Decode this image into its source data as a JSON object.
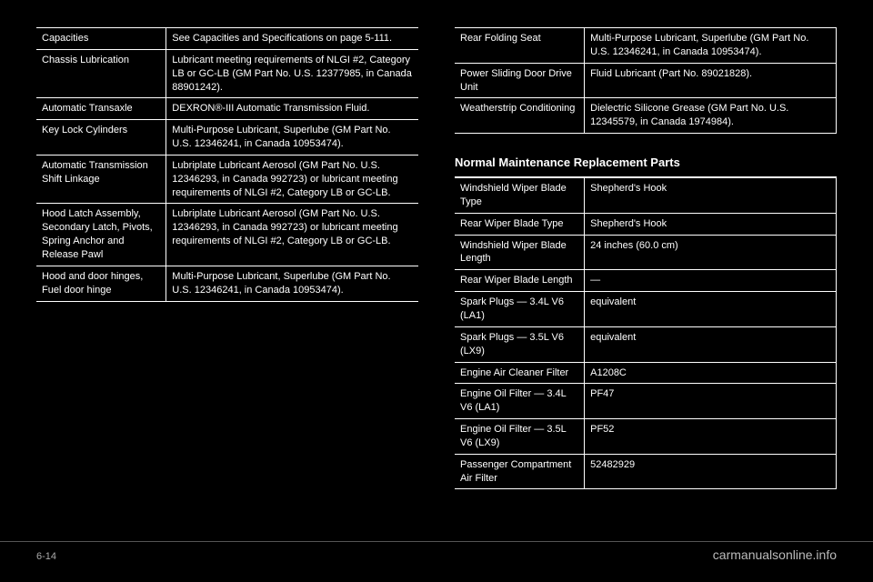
{
  "left_table": {
    "rows": [
      {
        "label": "Capacities",
        "value": "See Capacities and Specifications on page 5-111."
      },
      {
        "label": "Chassis Lubrication",
        "value": "Lubricant meeting requirements of NLGI #2, Category LB or GC-LB (GM Part No. U.S. 12377985, in Canada 88901242)."
      },
      {
        "label": "Automatic Transaxle",
        "value": "DEXRON®-III Automatic Transmission Fluid."
      },
      {
        "label": "Key Lock Cylinders",
        "value": "Multi-Purpose Lubricant, Superlube (GM Part No. U.S. 12346241, in Canada 10953474)."
      },
      {
        "label": "Automatic Transmission Shift Linkage",
        "value": "Lubriplate Lubricant Aerosol (GM Part No. U.S. 12346293, in Canada 992723) or lubricant meeting requirements of NLGI #2, Category LB or GC-LB."
      },
      {
        "label": "Hood Latch Assembly, Secondary Latch, Pivots, Spring Anchor and Release Pawl",
        "value": "Lubriplate Lubricant Aerosol (GM Part No. U.S. 12346293, in Canada 992723) or lubricant meeting requirements of NLGI #2, Category LB or GC-LB."
      },
      {
        "label": "Hood and door hinges, Fuel door hinge",
        "value": "Multi-Purpose Lubricant, Superlube (GM Part No. U.S. 12346241, in Canada 10953474)."
      }
    ]
  },
  "right_top": {
    "rows": [
      {
        "label": "Rear Folding Seat",
        "value": "Multi-Purpose Lubricant, Superlube (GM Part No. U.S. 12346241, in Canada 10953474)."
      },
      {
        "label": "Power Sliding Door Drive Unit",
        "value": "Fluid Lubricant (Part No. 89021828)."
      },
      {
        "label": "Weatherstrip Conditioning",
        "value": "Dielectric Silicone Grease (GM Part No. U.S. 12345579, in Canada 1974984)."
      }
    ]
  },
  "parts_title": "Normal Maintenance Replacement Parts",
  "right_bottom": {
    "rows": [
      {
        "label": "Windshield Wiper Blade Type",
        "value": "Shepherd's Hook"
      },
      {
        "label": "Rear Wiper Blade Type",
        "value": "Shepherd's Hook"
      },
      {
        "label": "Windshield Wiper Blade Length",
        "value": "24 inches (60.0 cm)"
      },
      {
        "label": "Rear Wiper Blade Length",
        "value": "—"
      },
      {
        "label": "Spark Plugs — 3.4L V6 (LA1)",
        "value": "equivalent"
      },
      {
        "label": "Spark Plugs — 3.5L V6 (LX9)",
        "value": "equivalent"
      },
      {
        "label": "Engine Air Cleaner Filter",
        "value": "A1208C"
      },
      {
        "label": "Engine Oil Filter — 3.4L V6 (LA1)",
        "value": "PF47"
      },
      {
        "label": "Engine Oil Filter — 3.5L V6 (LX9)",
        "value": "PF52"
      },
      {
        "label": "Passenger Compartment Air Filter",
        "value": "52482929"
      }
    ]
  },
  "page_number": "6-14",
  "watermark": "carmanualsonline.info"
}
